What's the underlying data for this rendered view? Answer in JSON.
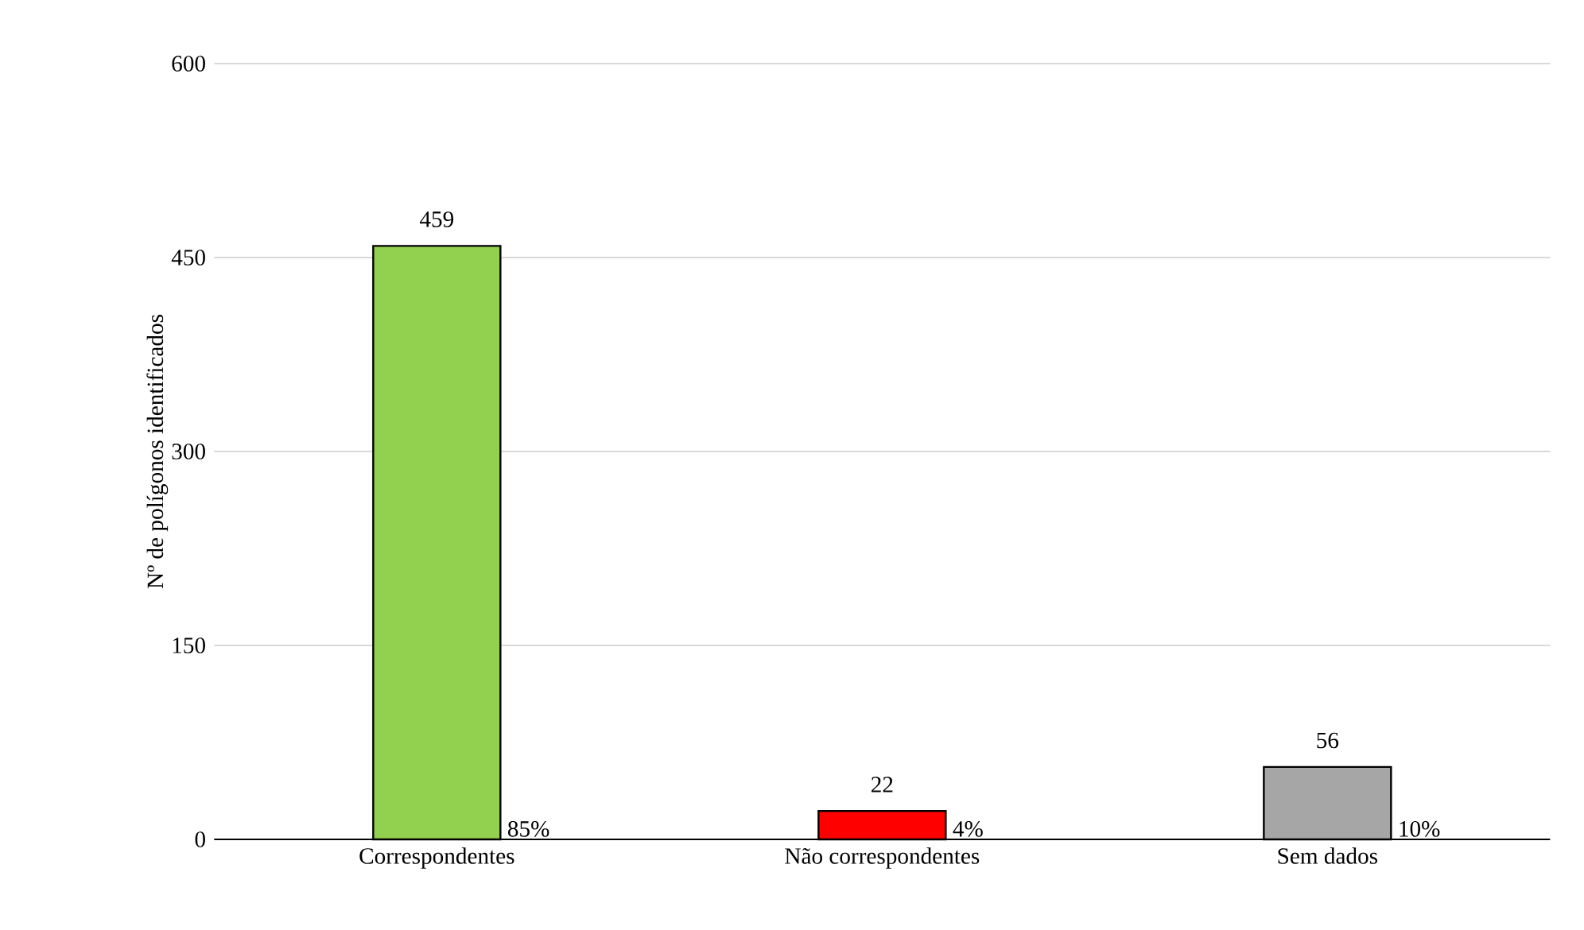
{
  "chart_data": {
    "type": "bar",
    "categories": [
      "Correspondentes",
      "Não correspondentes",
      "Sem dados"
    ],
    "values": [
      459,
      22,
      56
    ],
    "colors": [
      "#92d050",
      "#ff0000",
      "#a6a6a6"
    ],
    "ylabel": "Nº de polígonos identificados",
    "ylim": [
      0,
      600
    ],
    "yticks": [
      0,
      150,
      300,
      450,
      600
    ],
    "grid": "y",
    "data_labels": true,
    "annotations": [
      "85%",
      "4%",
      "10%"
    ]
  }
}
